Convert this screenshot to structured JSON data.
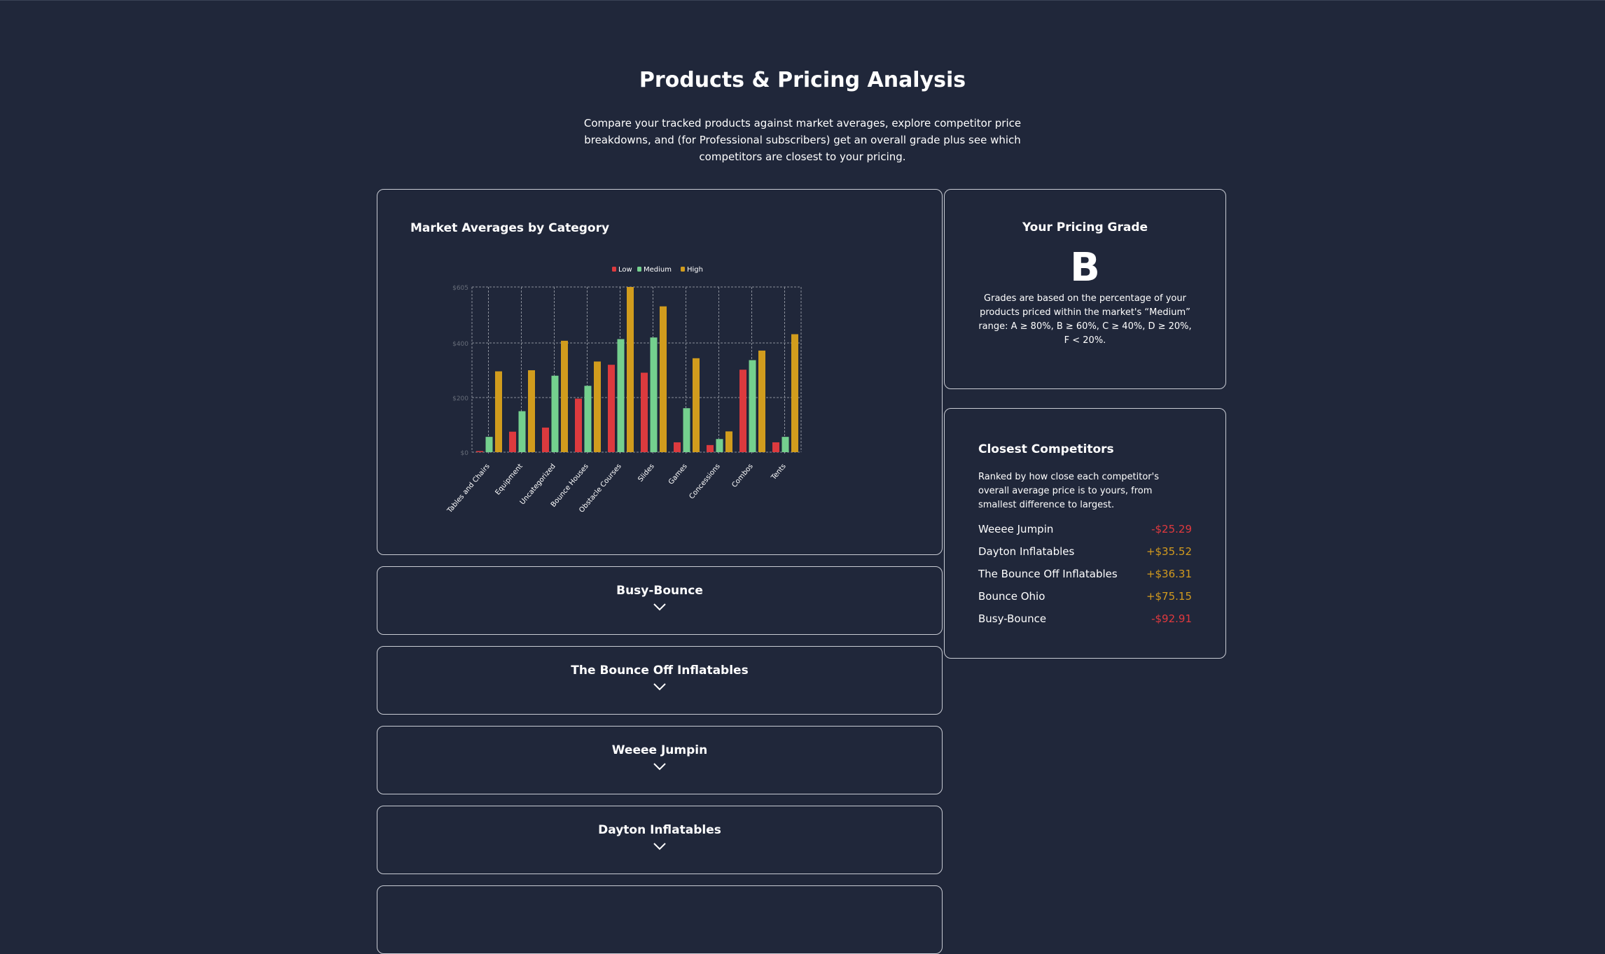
{
  "header": {
    "title": "Products & Pricing Analysis",
    "subtitle": "Compare your tracked products against market averages, explore competitor price breakdowns, and (for Professional subscribers) get an overall grade plus see which competitors are closest to your pricing."
  },
  "chart_card": {
    "title": "Market Averages by Category"
  },
  "chart_data": {
    "type": "bar",
    "title": "Market Averages by Category",
    "categories": [
      "Tables and Chairs",
      "Equipment",
      "Uncategorized",
      "Bounce Houses",
      "Obstacle Courses",
      "Slides",
      "Games",
      "Concessions",
      "Combos",
      "Tents"
    ],
    "series": [
      {
        "name": "Low",
        "color": "#dc3a3e",
        "values": [
          4,
          75,
          90,
          196,
          320,
          291,
          36,
          26,
          302,
          36
        ]
      },
      {
        "name": "Medium",
        "color": "#74d08e",
        "values": [
          56,
          150,
          280,
          243,
          414,
          420,
          161,
          48,
          337,
          56
        ]
      },
      {
        "name": "High",
        "color": "#d19c1d",
        "values": [
          296,
          300,
          408,
          332,
          605,
          534,
          344,
          76,
          372,
          432
        ]
      }
    ],
    "yticks": [
      "$0",
      "$200",
      "$400",
      "$605"
    ],
    "ytick_values": [
      0,
      200,
      400,
      605
    ],
    "ylim": [
      0,
      605
    ],
    "grid": true,
    "legend": "top"
  },
  "grade": {
    "title": "Your Pricing Grade",
    "letter": "B",
    "description": "Grades are based on the percentage of your products priced within the market's “Medium” range: A ≥ 80%, B ≥ 60%, C ≥ 40%, D ≥ 20%, F < 20%."
  },
  "competitors": {
    "title": "Closest Competitors",
    "description": "Ranked by how close each competitor's overall average price is to yours, from smallest difference to largest.",
    "items": [
      {
        "name": "Weeee Jumpin",
        "diff": "-$25.29"
      },
      {
        "name": "Dayton Inflatables",
        "diff": "+$35.52"
      },
      {
        "name": "The Bounce Off Inflatables",
        "diff": "+$36.31"
      },
      {
        "name": "Bounce Ohio",
        "diff": "+$75.15"
      },
      {
        "name": "Busy-Bounce",
        "diff": "-$92.91"
      }
    ]
  },
  "accordions": [
    "Busy-Bounce",
    "The Bounce Off Inflatables",
    "Weeee Jumpin",
    "Dayton Inflatables"
  ]
}
